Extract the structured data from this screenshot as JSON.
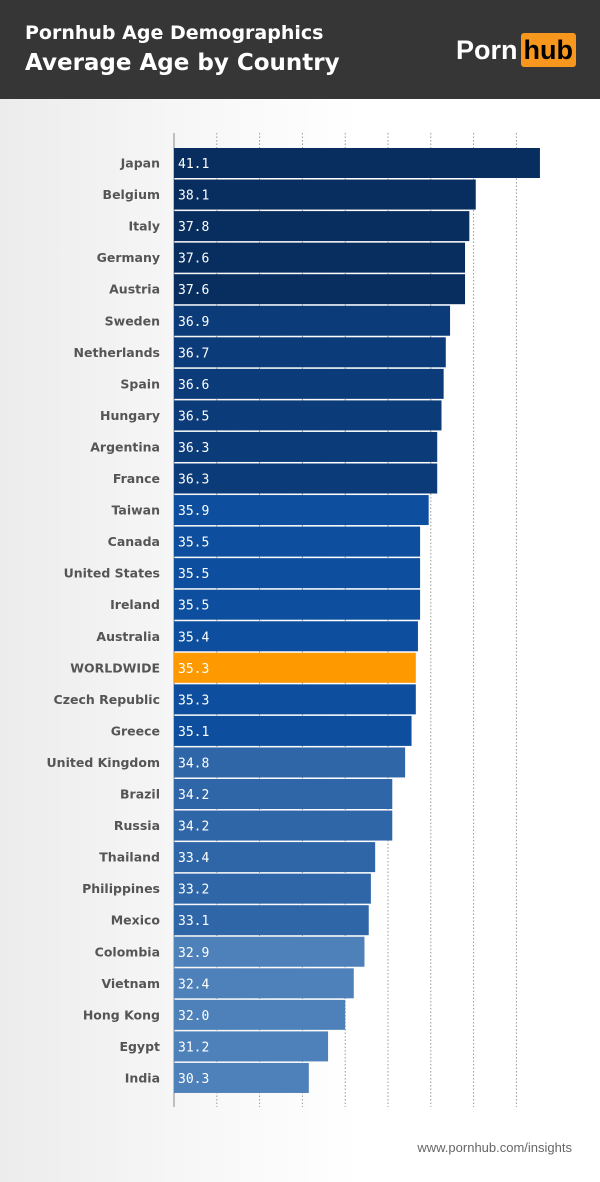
{
  "header": {
    "title": "Pornhub Age Demographics",
    "subtitle": "Average Age by Country",
    "logo": {
      "part1": "Porn",
      "part2": "hub"
    }
  },
  "footer": {
    "source": "www.pornhub.com/insights"
  },
  "colors": {
    "tier1": "#072e5e",
    "tier2": "#0b3b78",
    "tier3": "#0d4f9e",
    "tier4": "#2e66a8",
    "tier5": "#4e81b9",
    "highlight": "#ff9900",
    "header_bg": "#363636",
    "brand": "#f7971d"
  },
  "chart_data": {
    "type": "bar",
    "orientation": "horizontal",
    "title": "Average Age by Country",
    "xlim": [
      24,
      42
    ],
    "grid": true,
    "grid_step": 2,
    "categories": [
      "Japan",
      "Belgium",
      "Italy",
      "Germany",
      "Austria",
      "Sweden",
      "Netherlands",
      "Spain",
      "Hungary",
      "Argentina",
      "France",
      "Taiwan",
      "Canada",
      "United States",
      "Ireland",
      "Australia",
      "WORLDWIDE",
      "Czech Republic",
      "Greece",
      "United Kingdom",
      "Brazil",
      "Russia",
      "Thailand",
      "Philippines",
      "Mexico",
      "Colombia",
      "Vietnam",
      "Hong Kong",
      "Egypt",
      "India"
    ],
    "values": [
      41.1,
      38.1,
      37.8,
      37.6,
      37.6,
      36.9,
      36.7,
      36.6,
      36.5,
      36.3,
      36.3,
      35.9,
      35.5,
      35.5,
      35.5,
      35.4,
      35.3,
      35.3,
      35.1,
      34.8,
      34.2,
      34.2,
      33.4,
      33.2,
      33.1,
      32.9,
      32.4,
      32.0,
      31.2,
      30.3
    ],
    "value_labels": [
      "41.1",
      "38.1",
      "37.8",
      "37.6",
      "37.6",
      "36.9",
      "36.7",
      "36.6",
      "36.5",
      "36.3",
      "36.3",
      "35.9",
      "35.5",
      "35.5",
      "35.5",
      "35.4",
      "35.3",
      "35.3",
      "35.1",
      "34.8",
      "34.2",
      "34.2",
      "33.4",
      "33.2",
      "33.1",
      "32.9",
      "32.4",
      "32.0",
      "31.2",
      "30.3"
    ],
    "color_tiers": [
      "tier1",
      "tier1",
      "tier1",
      "tier1",
      "tier1",
      "tier2",
      "tier2",
      "tier2",
      "tier2",
      "tier2",
      "tier2",
      "tier3",
      "tier3",
      "tier3",
      "tier3",
      "tier3",
      "highlight",
      "tier3",
      "tier3",
      "tier4",
      "tier4",
      "tier4",
      "tier4",
      "tier4",
      "tier4",
      "tier5",
      "tier5",
      "tier5",
      "tier5",
      "tier5"
    ],
    "highlight": "WORLDWIDE"
  }
}
